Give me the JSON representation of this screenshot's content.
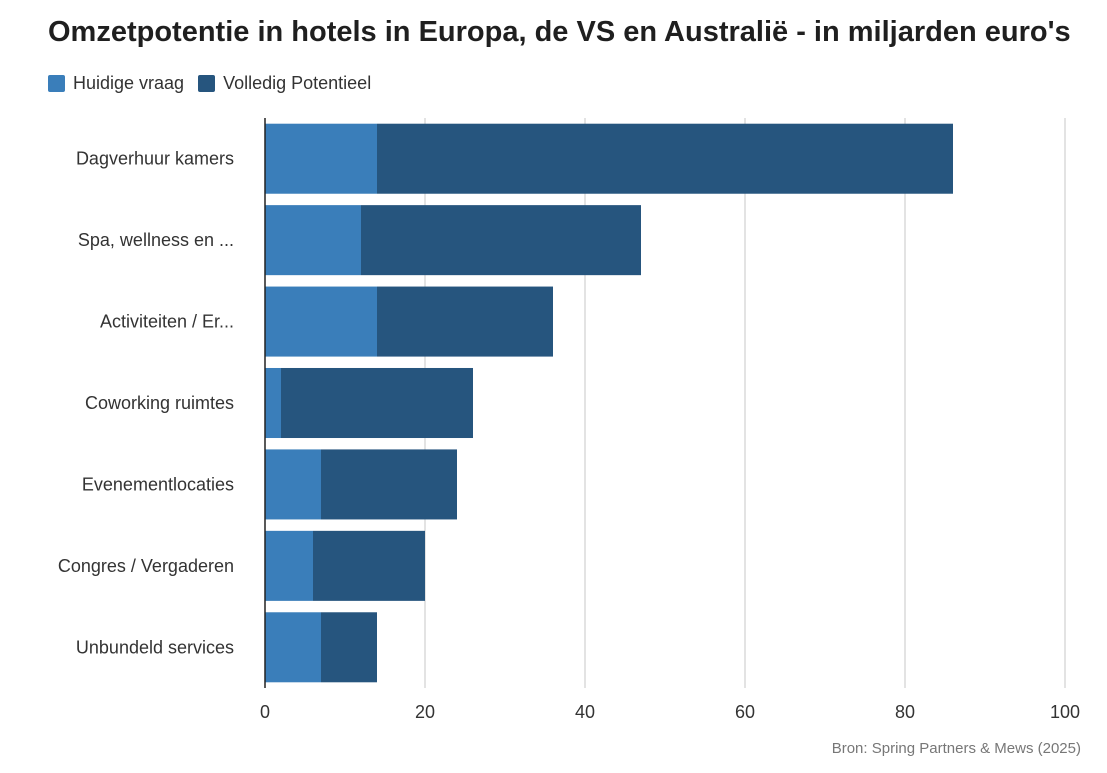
{
  "title": "Omzetpotentie in hotels in Europa, de VS en Australië - in miljarden euro's",
  "source": "Bron: Spring Partners & Mews (2025)",
  "colors": {
    "huidige": "#3a7eba",
    "potentieel": "#26557e",
    "grid": "#d0d0d0",
    "axis": "#222222"
  },
  "chart_data": {
    "type": "bar",
    "orientation": "horizontal",
    "stacked": true,
    "categories": [
      "Dagverhuur kamers",
      "Spa, wellness en ...",
      "Activiteiten / Er...",
      "Coworking ruimtes",
      "Evenementlocaties",
      "Congres / Vergaderen",
      "Unbundeld services"
    ],
    "series": [
      {
        "name": "Huidige vraag",
        "values": [
          14,
          12,
          14,
          2,
          7,
          6,
          7
        ]
      },
      {
        "name": "Volledig Potentieel",
        "values": [
          72,
          35,
          22,
          24,
          17,
          14,
          7
        ]
      }
    ],
    "xlim": [
      0,
      100
    ],
    "xticks": [
      0,
      20,
      40,
      60,
      80,
      100
    ],
    "grid": true,
    "legend_position": "top-left"
  }
}
